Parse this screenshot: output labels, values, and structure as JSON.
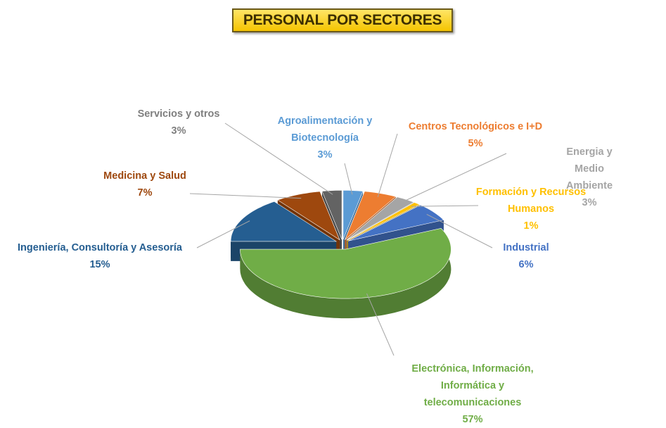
{
  "chart_data": {
    "type": "pie3d",
    "title": "PERSONAL POR SECTORES",
    "categories": [
      "Agroalimentación y\nBiotecnología",
      "Centros Tecnológicos e I+D",
      "Energia y Medio Ambiente",
      "Formación y Recursos\nHumanos",
      "Industrial",
      "Electrónica, Información,\nInformática y\ntelecomunicaciones",
      "Ingeniería, Consultoría y Asesoría",
      "Medicina y Salud",
      "Servicios y otros"
    ],
    "values": [
      3,
      5,
      3,
      1,
      6,
      57,
      15,
      7,
      3
    ],
    "value_labels": [
      "3%",
      "5%",
      "3%",
      "1%",
      "6%",
      "57%",
      "15%",
      "7%",
      "3%"
    ],
    "colors": [
      "#5b9bd5",
      "#ed7d31",
      "#a5a5a5",
      "#ffc000",
      "#4472c4",
      "#70ad47",
      "#255e91",
      "#9e480e",
      "#636363"
    ]
  }
}
